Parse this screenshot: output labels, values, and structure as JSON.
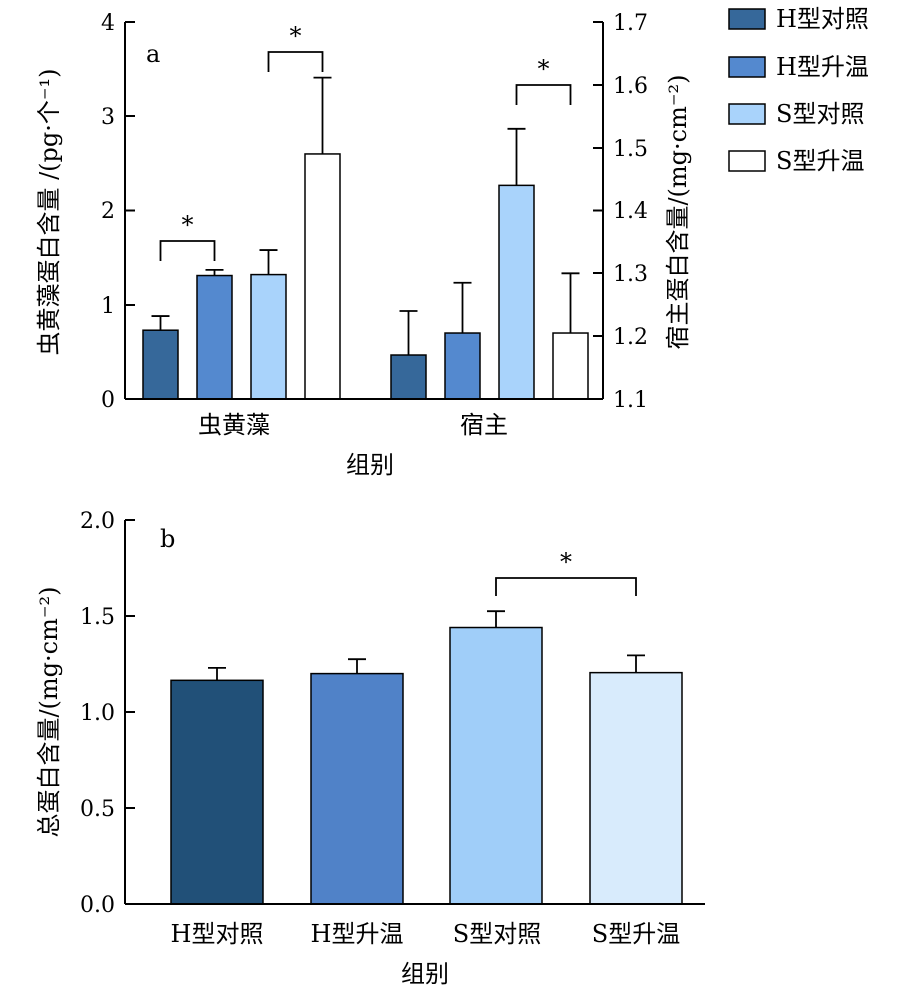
{
  "legend": [
    {
      "label": "H型对照",
      "color": "#36689a"
    },
    {
      "label": "H型升温",
      "color": "#5489cf"
    },
    {
      "label": "S型对照",
      "color": "#a9d3fb"
    },
    {
      "label": "S型升温",
      "color": "#ffffff"
    }
  ],
  "chart_data": [
    {
      "type": "bar",
      "panel": "a",
      "categories": [
        "虫黄藻",
        "宿主"
      ],
      "xlabel": "组别",
      "ylabel_left": "虫黄藻蛋白含量 /(pg·个⁻¹)",
      "ylabel_right": "宿主蛋白含量/(mg·cm⁻²)",
      "ylim_left": [
        0,
        4
      ],
      "yticks_left": [
        "0",
        "1",
        "2",
        "3",
        "4"
      ],
      "ylim_right": [
        1.1,
        1.7
      ],
      "yticks_right": [
        "1.1",
        "1.2",
        "1.3",
        "1.4",
        "1.5",
        "1.6",
        "1.7"
      ],
      "series": [
        {
          "name": "H型对照",
          "values": [
            0.73,
            1.17
          ],
          "errors": [
            0.15,
            0.07
          ],
          "axis": [
            "left",
            "right"
          ]
        },
        {
          "name": "H型升温",
          "values": [
            1.31,
            1.205
          ],
          "errors": [
            0.06,
            0.08
          ],
          "axis": [
            "left",
            "right"
          ]
        },
        {
          "name": "S型对照",
          "values": [
            1.32,
            1.44
          ],
          "errors": [
            0.26,
            0.09
          ],
          "axis": [
            "left",
            "right"
          ]
        },
        {
          "name": "S型升温",
          "values": [
            2.6,
            1.205
          ],
          "errors": [
            0.81,
            0.095
          ],
          "axis": [
            "left",
            "right"
          ]
        }
      ],
      "significance": [
        {
          "group": 0,
          "from": 0,
          "to": 1,
          "label": "*"
        },
        {
          "group": 0,
          "from": 2,
          "to": 3,
          "label": "*"
        },
        {
          "group": 1,
          "from": 2,
          "to": 3,
          "label": "*"
        }
      ],
      "panel_label": "a",
      "grid": false
    },
    {
      "type": "bar",
      "panel": "b",
      "categories": [
        "H型对照",
        "H型升温",
        "S型对照",
        "S型升温"
      ],
      "values": [
        1.165,
        1.2,
        1.44,
        1.205
      ],
      "errors": [
        0.065,
        0.075,
        0.085,
        0.09
      ],
      "colors": [
        "#215078",
        "#5082c8",
        "#a0cef9",
        "#d8ebfc"
      ],
      "xlabel": "组别",
      "ylabel": "总蛋白含量/(mg·cm⁻²)",
      "ylim": [
        0,
        2.0
      ],
      "yticks": [
        "0.0",
        "0.5",
        "1.0",
        "1.5",
        "2.0"
      ],
      "significance": [
        {
          "from": 2,
          "to": 3,
          "label": "*"
        }
      ],
      "panel_label": "b",
      "grid": false
    }
  ]
}
